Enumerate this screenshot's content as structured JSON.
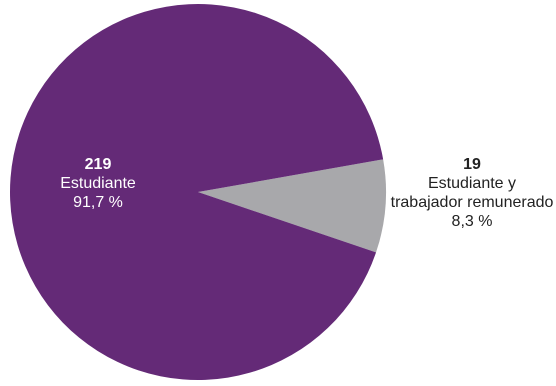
{
  "chart_data": {
    "type": "pie",
    "title": "",
    "slices": [
      {
        "label": "Estudiante",
        "count": "219",
        "value": 219,
        "percent_label": "91,7 %",
        "percent": 91.7,
        "color": "#642a77"
      },
      {
        "label": "Estudiante y trabajador remunerado",
        "label_lines": [
          "Estudiante y",
          "trabajador remunerado"
        ],
        "count": "19",
        "value": 19,
        "percent_label": "8,3 %",
        "percent": 8.3,
        "color": "#a8a8ab"
      }
    ],
    "start_angle_deg": -10,
    "direction": "clockwise",
    "legend": "none"
  }
}
